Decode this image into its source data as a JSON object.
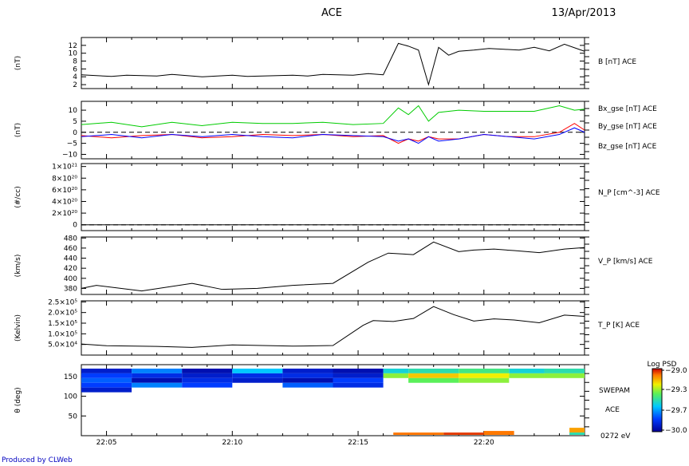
{
  "header": {
    "title": "ACE",
    "date": "13/Apr/2013"
  },
  "footer": "Produced by CLWeb",
  "colors": {
    "bx": "#ff0000",
    "by": "#00cc00",
    "bz": "#0000ff",
    "line": "#000000",
    "footer": "#0000c0"
  },
  "chart_data": [
    {
      "type": "line",
      "ylabel": "(nT)",
      "ylim": [
        1,
        14
      ],
      "yticks": [
        "2",
        "4",
        "6",
        "8",
        "10",
        "12"
      ],
      "yticks_values": [
        2,
        4,
        6,
        8,
        10,
        12
      ],
      "series": [
        {
          "name": "B [nT] ACE",
          "x": [
            0,
            3,
            6,
            9,
            12,
            15,
            18,
            21,
            24,
            27,
            30,
            33,
            36,
            39,
            42,
            45,
            48,
            51,
            54,
            57,
            60,
            63,
            65,
            67,
            69,
            71,
            73,
            75,
            78,
            81,
            84,
            87,
            90,
            93,
            96,
            100
          ],
          "values": [
            4.5,
            4.3,
            4.1,
            4.4,
            4.3,
            4.2,
            4.6,
            4.3,
            4.0,
            4.2,
            4.4,
            4.1,
            4.2,
            4.3,
            4.4,
            4.2,
            4.6,
            4.5,
            4.4,
            4.8,
            4.5,
            12.5,
            11.8,
            10.8,
            2,
            11.5,
            9.5,
            10.5,
            10.8,
            11.2,
            11.0,
            10.8,
            11.5,
            10.6,
            12.3,
            10.5
          ]
        }
      ]
    },
    {
      "type": "line",
      "ylabel": "(nT)",
      "ylim": [
        -12,
        14
      ],
      "yticks": [
        "−10",
        "−5",
        "0",
        "5",
        "10"
      ],
      "yticks_values": [
        -10,
        -5,
        0,
        5,
        10
      ],
      "series": [
        {
          "name": "Bx_gse [nT] ACE",
          "x": [
            0,
            6,
            12,
            18,
            24,
            30,
            36,
            42,
            48,
            54,
            60,
            63,
            65,
            67,
            69,
            71,
            75,
            80,
            85,
            90,
            95,
            98,
            100
          ],
          "values": [
            -1.5,
            -2.5,
            -1.5,
            -1,
            -2.5,
            -2,
            -1,
            -1.5,
            -1,
            -2,
            -1.5,
            -5,
            -3,
            -4,
            -2,
            -3,
            -3,
            -1,
            -2,
            -2,
            0,
            4,
            1
          ]
        },
        {
          "name": "By_gse [nT] ACE",
          "x": [
            0,
            6,
            12,
            18,
            24,
            30,
            36,
            42,
            48,
            54,
            60,
            63,
            65,
            67,
            69,
            71,
            75,
            80,
            85,
            90,
            95,
            98,
            100
          ],
          "values": [
            3.5,
            4.5,
            2.5,
            4.5,
            3,
            4.5,
            4,
            4,
            4.5,
            3.5,
            4,
            11,
            8,
            12,
            5,
            9,
            10,
            9.5,
            9.5,
            9.5,
            12,
            10,
            10.5
          ]
        },
        {
          "name": "Bz_gse [nT] ACE",
          "x": [
            0,
            6,
            12,
            18,
            24,
            30,
            36,
            42,
            48,
            54,
            60,
            63,
            65,
            67,
            69,
            71,
            75,
            80,
            85,
            90,
            95,
            98,
            100
          ],
          "values": [
            -2,
            -1,
            -2.5,
            -1,
            -2,
            -1,
            -2,
            -2.5,
            -1,
            -1.5,
            -2,
            -4,
            -3,
            -5,
            -2,
            -4,
            -3,
            -1,
            -2,
            -3,
            -1,
            2,
            0
          ]
        }
      ]
    },
    {
      "type": "line",
      "ylabel": "(#/cc)",
      "ylim": [
        -0.1,
        1.05
      ],
      "yticks": [
        "0",
        "2×10²⁰",
        "4×10²⁰",
        "6×10²⁰",
        "8×10²⁰",
        "1×10²¹"
      ],
      "yticks_values": [
        0,
        0.2,
        0.4,
        0.6,
        0.8,
        1.0
      ],
      "series": [
        {
          "name": "N_P [cm^-3] ACE",
          "x": [
            0,
            100
          ],
          "values": [
            0,
            0
          ]
        }
      ]
    },
    {
      "type": "line",
      "ylabel": "(km/s)",
      "ylim": [
        368,
        482
      ],
      "yticks": [
        "380",
        "400",
        "420",
        "440",
        "460",
        "480"
      ],
      "yticks_values": [
        380,
        400,
        420,
        440,
        460,
        480
      ],
      "series": [
        {
          "name": "V_P [km/s] ACE",
          "x": [
            0,
            3,
            12,
            22,
            28,
            35,
            42,
            50,
            57,
            61,
            66,
            70,
            75,
            78,
            82,
            86,
            91,
            96,
            100
          ],
          "values": [
            380,
            386,
            375,
            390,
            378,
            380,
            386,
            390,
            432,
            450,
            447,
            472,
            453,
            456,
            458,
            455,
            451,
            458,
            461
          ]
        }
      ]
    },
    {
      "type": "line",
      "ylabel": "(Kelvin)",
      "ylim": [
        0,
        255000
      ],
      "yticks": [
        "5.0×10⁴",
        "1.0×10⁵",
        "1.5×10⁵",
        "2.0×10⁵",
        "2.5×10⁵"
      ],
      "yticks_values": [
        50000,
        100000,
        150000,
        200000,
        250000
      ],
      "series": [
        {
          "name": "T_P [K] ACE",
          "x": [
            0,
            5,
            15,
            22,
            30,
            42,
            50,
            56,
            58,
            62,
            66,
            70,
            74,
            78,
            82,
            86,
            91,
            96,
            100
          ],
          "values": [
            52000,
            44000,
            41000,
            36000,
            48000,
            42000,
            45000,
            140000,
            162000,
            158000,
            172000,
            228000,
            190000,
            160000,
            170000,
            165000,
            152000,
            188000,
            182000
          ]
        }
      ]
    },
    {
      "type": "heatmap",
      "ylabel": "θ (deg)",
      "ylim": [
        0,
        180
      ],
      "yticks": [
        "50",
        "100",
        "150"
      ],
      "yticks_values": [
        50,
        100,
        150
      ],
      "right_labels": [
        "SWEPAM",
        "ACE",
        "0272 eV"
      ],
      "colorbar": {
        "label": "Log PSD",
        "ticks": [
          "−29.0",
          "−29.3",
          "−29.7",
          "−30.0"
        ],
        "range": [
          -30.0,
          -29.0
        ]
      },
      "x_tick_labels": [
        "22:05",
        "22:10",
        "22:15",
        "22:20"
      ],
      "x_tick_values": [
        22.05,
        22.1,
        22.15,
        22.2
      ],
      "cells": [
        {
          "x0": 0,
          "x1": 10,
          "y0": 158,
          "y1": 170,
          "v": -29.9
        },
        {
          "x0": 0,
          "x1": 10,
          "y0": 146,
          "y1": 158,
          "v": -29.8
        },
        {
          "x0": 0,
          "x1": 10,
          "y0": 134,
          "y1": 146,
          "v": -29.75
        },
        {
          "x0": 0,
          "x1": 10,
          "y0": 122,
          "y1": 134,
          "v": -29.8
        },
        {
          "x0": 0,
          "x1": 10,
          "y0": 110,
          "y1": 122,
          "v": -29.9
        },
        {
          "x0": 10,
          "x1": 20,
          "y0": 158,
          "y1": 170,
          "v": -29.7
        },
        {
          "x0": 10,
          "x1": 20,
          "y0": 146,
          "y1": 158,
          "v": -29.85
        },
        {
          "x0": 10,
          "x1": 20,
          "y0": 134,
          "y1": 146,
          "v": -29.95
        },
        {
          "x0": 10,
          "x1": 20,
          "y0": 122,
          "y1": 134,
          "v": -29.7
        },
        {
          "x0": 20,
          "x1": 30,
          "y0": 158,
          "y1": 170,
          "v": -29.95
        },
        {
          "x0": 20,
          "x1": 30,
          "y0": 146,
          "y1": 158,
          "v": -29.9
        },
        {
          "x0": 20,
          "x1": 30,
          "y0": 134,
          "y1": 146,
          "v": -29.85
        },
        {
          "x0": 20,
          "x1": 30,
          "y0": 122,
          "y1": 134,
          "v": -29.8
        },
        {
          "x0": 30,
          "x1": 40,
          "y0": 158,
          "y1": 170,
          "v": -29.6
        },
        {
          "x0": 30,
          "x1": 40,
          "y0": 146,
          "y1": 158,
          "v": -29.85
        },
        {
          "x0": 30,
          "x1": 40,
          "y0": 134,
          "y1": 146,
          "v": -29.9
        },
        {
          "x0": 40,
          "x1": 50,
          "y0": 158,
          "y1": 170,
          "v": -29.9
        },
        {
          "x0": 40,
          "x1": 50,
          "y0": 146,
          "y1": 158,
          "v": -29.85
        },
        {
          "x0": 40,
          "x1": 50,
          "y0": 134,
          "y1": 146,
          "v": -29.95
        },
        {
          "x0": 40,
          "x1": 50,
          "y0": 122,
          "y1": 134,
          "v": -29.75
        },
        {
          "x0": 50,
          "x1": 60,
          "y0": 158,
          "y1": 170,
          "v": -29.95
        },
        {
          "x0": 50,
          "x1": 60,
          "y0": 146,
          "y1": 158,
          "v": -29.9
        },
        {
          "x0": 50,
          "x1": 60,
          "y0": 134,
          "y1": 146,
          "v": -29.8
        },
        {
          "x0": 50,
          "x1": 60,
          "y0": 122,
          "y1": 134,
          "v": -29.85
        },
        {
          "x0": 60,
          "x1": 65,
          "y0": 158,
          "y1": 170,
          "v": -29.55
        },
        {
          "x0": 60,
          "x1": 65,
          "y0": 146,
          "y1": 158,
          "v": -29.35
        },
        {
          "x0": 65,
          "x1": 75,
          "y0": 158,
          "y1": 170,
          "v": -29.5
        },
        {
          "x0": 65,
          "x1": 75,
          "y0": 146,
          "y1": 158,
          "v": -29.2
        },
        {
          "x0": 65,
          "x1": 75,
          "y0": 134,
          "y1": 146,
          "v": -29.4
        },
        {
          "x0": 75,
          "x1": 85,
          "y0": 158,
          "y1": 170,
          "v": -29.45
        },
        {
          "x0": 75,
          "x1": 85,
          "y0": 146,
          "y1": 158,
          "v": -29.25
        },
        {
          "x0": 75,
          "x1": 85,
          "y0": 134,
          "y1": 146,
          "v": -29.35
        },
        {
          "x0": 85,
          "x1": 92,
          "y0": 158,
          "y1": 170,
          "v": -29.55
        },
        {
          "x0": 85,
          "x1": 92,
          "y0": 146,
          "y1": 158,
          "v": -29.35
        },
        {
          "x0": 92,
          "x1": 100,
          "y0": 158,
          "y1": 170,
          "v": -29.5
        },
        {
          "x0": 92,
          "x1": 100,
          "y0": 146,
          "y1": 158,
          "v": -29.35
        },
        {
          "x0": 62,
          "x1": 72,
          "y0": 2,
          "y1": 8,
          "v": -29.1
        },
        {
          "x0": 72,
          "x1": 80,
          "y0": 2,
          "y1": 8,
          "v": -29.05
        },
        {
          "x0": 80,
          "x1": 86,
          "y0": 2,
          "y1": 12,
          "v": -29.1
        },
        {
          "x0": 97,
          "x1": 100,
          "y0": 8,
          "y1": 20,
          "v": -29.15
        },
        {
          "x0": 97,
          "x1": 100,
          "y0": 2,
          "y1": 8,
          "v": -29.5
        }
      ]
    }
  ]
}
